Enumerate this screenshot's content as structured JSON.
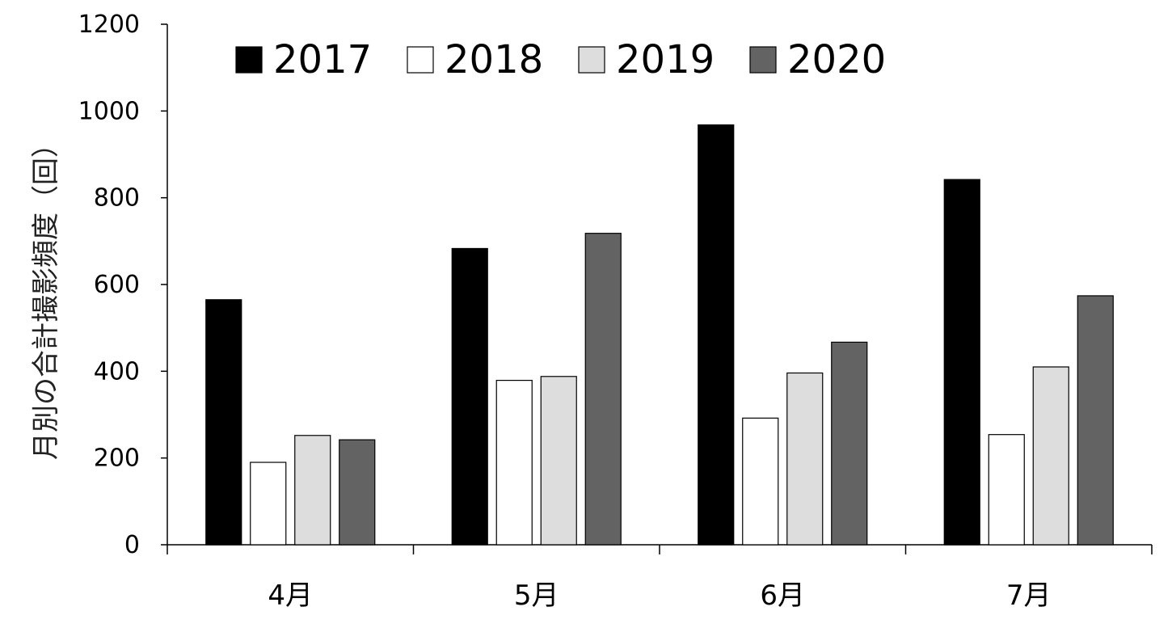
{
  "chart_data": {
    "type": "bar",
    "title": "",
    "xlabel": "",
    "ylabel": "月別の合計撮影頻度（回）",
    "ylim": [
      0,
      1200
    ],
    "yticks": [
      0,
      200,
      400,
      600,
      800,
      1000,
      1200
    ],
    "categories": [
      "4月",
      "5月",
      "6月",
      "7月"
    ],
    "series": [
      {
        "name": "2017",
        "color": "#000000",
        "values": [
          565,
          683,
          968,
          842
        ]
      },
      {
        "name": "2018",
        "color": "#ffffff",
        "values": [
          190,
          379,
          292,
          254
        ]
      },
      {
        "name": "2019",
        "color": "#dddddd",
        "values": [
          252,
          388,
          396,
          410
        ]
      },
      {
        "name": "2020",
        "color": "#636363",
        "values": [
          242,
          718,
          467,
          574
        ]
      }
    ],
    "legend_position": "top",
    "grid": false
  }
}
